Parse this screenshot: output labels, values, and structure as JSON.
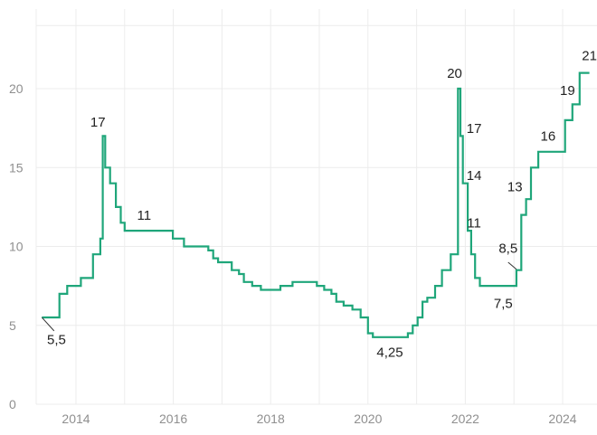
{
  "chart_data": {
    "type": "line",
    "title": "",
    "xlabel": "",
    "ylabel": "",
    "grid": true,
    "legend": "none",
    "line_color": "#1fa67a",
    "xlim": [
      2013.3,
      2024.55
    ],
    "ylim": [
      0,
      24
    ],
    "x_ticks": [
      2014,
      2016,
      2018,
      2020,
      2022,
      2024
    ],
    "x_tick_labels": [
      "2014",
      "2016",
      "2018",
      "2020",
      "2022",
      "2024"
    ],
    "y_ticks": [
      0,
      5,
      10,
      15,
      20
    ],
    "y_tick_labels": [
      "0",
      "5",
      "10",
      "15",
      "20"
    ],
    "series": [
      {
        "step": true,
        "points": [
          [
            2013.3,
            5.5
          ],
          [
            2013.66,
            7.0
          ],
          [
            2013.82,
            7.5
          ],
          [
            2014.1,
            8.0
          ],
          [
            2014.35,
            9.5
          ],
          [
            2014.5,
            10.5
          ],
          [
            2014.55,
            17.0
          ],
          [
            2014.6,
            15.0
          ],
          [
            2014.7,
            14.0
          ],
          [
            2014.82,
            12.5
          ],
          [
            2014.92,
            11.5
          ],
          [
            2015.0,
            11.0
          ],
          [
            2015.99,
            10.5
          ],
          [
            2016.22,
            10.0
          ],
          [
            2016.72,
            9.75
          ],
          [
            2016.82,
            9.25
          ],
          [
            2016.92,
            9.0
          ],
          [
            2017.2,
            8.5
          ],
          [
            2017.35,
            8.25
          ],
          [
            2017.45,
            7.75
          ],
          [
            2017.62,
            7.5
          ],
          [
            2017.8,
            7.25
          ],
          [
            2018.2,
            7.5
          ],
          [
            2018.45,
            7.75
          ],
          [
            2018.95,
            7.5
          ],
          [
            2019.1,
            7.25
          ],
          [
            2019.25,
            7.0
          ],
          [
            2019.35,
            6.5
          ],
          [
            2019.5,
            6.25
          ],
          [
            2019.68,
            6.0
          ],
          [
            2019.85,
            5.5
          ],
          [
            2020.0,
            4.5
          ],
          [
            2020.1,
            4.25
          ],
          [
            2020.82,
            4.5
          ],
          [
            2020.92,
            5.0
          ],
          [
            2021.02,
            5.5
          ],
          [
            2021.12,
            6.5
          ],
          [
            2021.22,
            6.75
          ],
          [
            2021.38,
            7.5
          ],
          [
            2021.52,
            8.5
          ],
          [
            2021.7,
            9.5
          ],
          [
            2021.85,
            20.0
          ],
          [
            2021.9,
            17.0
          ],
          [
            2021.95,
            14.0
          ],
          [
            2022.05,
            11.0
          ],
          [
            2022.12,
            9.5
          ],
          [
            2022.2,
            8.0
          ],
          [
            2022.3,
            7.5
          ],
          [
            2023.05,
            8.5
          ],
          [
            2023.15,
            12.0
          ],
          [
            2023.25,
            13.0
          ],
          [
            2023.35,
            15.0
          ],
          [
            2023.5,
            16.0
          ],
          [
            2024.05,
            18.0
          ],
          [
            2024.2,
            19.0
          ],
          [
            2024.35,
            21.0
          ],
          [
            2024.55,
            21.0
          ]
        ]
      }
    ],
    "annotations": [
      {
        "text": "17",
        "x": 2014.45,
        "y": 17.6
      },
      {
        "text": "11",
        "x": 2015.4,
        "y": 11.7
      },
      {
        "text": "5,5",
        "x": 2013.6,
        "y": 3.8
      },
      {
        "text": "4,25",
        "x": 2020.45,
        "y": 3.0
      },
      {
        "text": "20",
        "x": 2021.78,
        "y": 20.7
      },
      {
        "text": "17",
        "x": 2022.18,
        "y": 17.2
      },
      {
        "text": "14",
        "x": 2022.18,
        "y": 14.2
      },
      {
        "text": "11",
        "x": 2022.18,
        "y": 11.2
      },
      {
        "text": "8,5",
        "x": 2022.88,
        "y": 9.6
      },
      {
        "text": "7,5",
        "x": 2022.78,
        "y": 6.1
      },
      {
        "text": "13",
        "x": 2023.02,
        "y": 13.5
      },
      {
        "text": "16",
        "x": 2023.7,
        "y": 16.7
      },
      {
        "text": "19",
        "x": 2024.1,
        "y": 19.6
      },
      {
        "text": "21",
        "x": 2024.55,
        "y": 21.8
      }
    ],
    "leader_lines": [
      {
        "x1": 2013.3,
        "y1": 5.5,
        "x2": 2013.55,
        "y2": 4.65
      },
      {
        "x1": 2022.88,
        "y1": 9.0,
        "x2": 2023.05,
        "y2": 8.55
      }
    ]
  }
}
